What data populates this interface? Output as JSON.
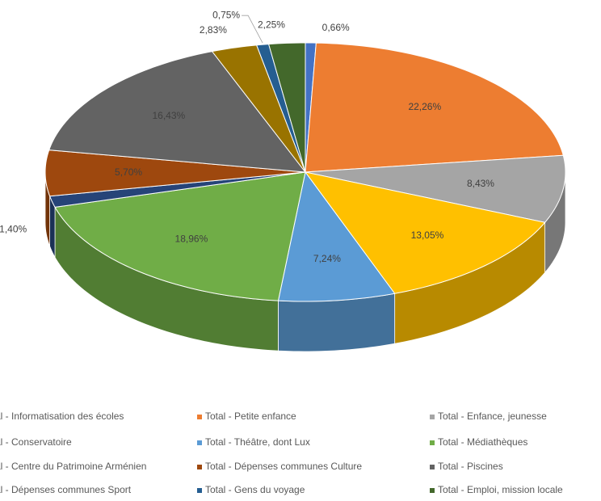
{
  "chart_data": {
    "type": "pie",
    "categories": [
      "Total - Informatisation des écoles",
      "Total - Petite enfance",
      "Total - Enfance, jeunesse",
      "Total - Conservatoire",
      "Total - Théâtre, dont Lux",
      "Total - Médiathèques",
      "Total - Centre du Patrimoine Arménien",
      "Total - Dépenses communes Culture",
      "Total - Piscines",
      "Total - Dépenses communes Sport",
      "Total - Gens du voyage",
      "Total - Emploi, mission locale"
    ],
    "values": [
      0.66,
      22.26,
      8.43,
      13.05,
      7.24,
      18.96,
      1.4,
      5.7,
      16.43,
      2.83,
      0.75,
      2.25
    ],
    "value_labels": [
      "0,66%",
      "22,26%",
      "8,43%",
      "13,05%",
      "7,24%",
      "18,96%",
      "1,40%",
      "5,70%",
      "16,43%",
      "2,83%",
      "0,75%",
      "2,25%"
    ],
    "colors": [
      "#4472c4",
      "#ed7d31",
      "#a5a5a5",
      "#ffc000",
      "#5b9bd5",
      "#70ad47",
      "#264478",
      "#9e480e",
      "#636363",
      "#997300",
      "#255e91",
      "#43682b"
    ],
    "legend": "bottom"
  }
}
